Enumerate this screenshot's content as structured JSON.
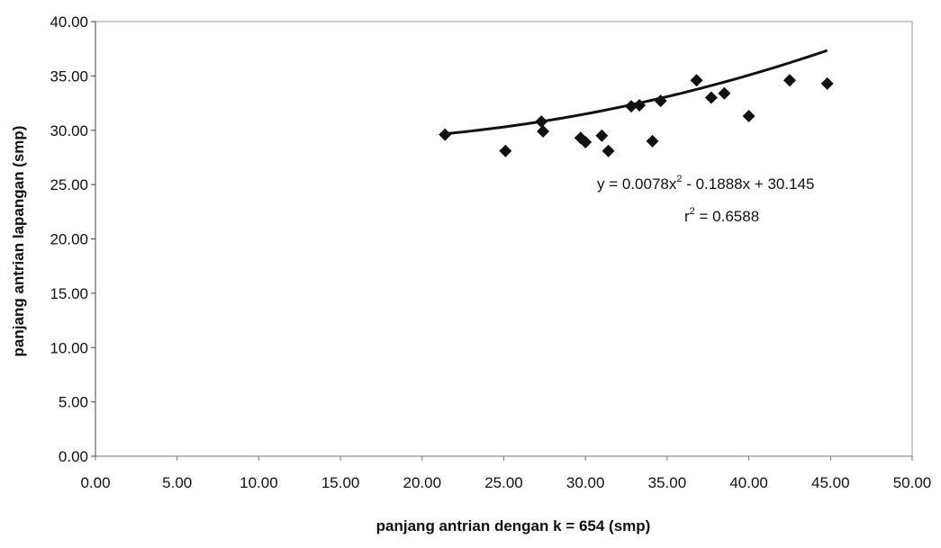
{
  "chart_data": {
    "type": "scatter",
    "xlabel_prefix": "panjang antrian dengan ",
    "xlabel_k": "k = 654",
    "xlabel_suffix": " (smp)",
    "ylabel": "panjang antrian lapangan (smp)",
    "xlim": [
      0,
      50
    ],
    "ylim": [
      0,
      40
    ],
    "x_ticks": [
      "0.00",
      "5.00",
      "10.00",
      "15.00",
      "20.00",
      "25.00",
      "30.00",
      "35.00",
      "40.00",
      "45.00",
      "50.00"
    ],
    "y_ticks": [
      "0.00",
      "5.00",
      "10.00",
      "15.00",
      "20.00",
      "25.00",
      "30.00",
      "35.00",
      "40.00"
    ],
    "grid": false,
    "points": [
      [
        21.4,
        29.6
      ],
      [
        25.1,
        28.1
      ],
      [
        27.3,
        30.8
      ],
      [
        27.4,
        29.9
      ],
      [
        29.7,
        29.3
      ],
      [
        30.0,
        28.9
      ],
      [
        31.0,
        29.5
      ],
      [
        31.4,
        28.1
      ],
      [
        32.8,
        32.2
      ],
      [
        33.3,
        32.3
      ],
      [
        34.1,
        29.0
      ],
      [
        34.6,
        32.7
      ],
      [
        36.8,
        34.6
      ],
      [
        37.7,
        33.0
      ],
      [
        38.5,
        33.4
      ],
      [
        40.0,
        31.3
      ],
      [
        42.5,
        34.6
      ],
      [
        44.8,
        34.3
      ]
    ],
    "trendline": {
      "type": "polynomial",
      "coefficients": {
        "a": 0.0078,
        "b": -0.1888,
        "c": 30.145
      },
      "x_range": [
        21.4,
        44.8
      ],
      "equation_main": "y = 0.0078x",
      "equation_sup": "2",
      "equation_rest": " - 0.1888x + 30.145",
      "r2_main": "r",
      "r2_sup": "2",
      "r2_rest": " = 0.6588"
    },
    "colors": {
      "marker": "#111111",
      "line": "#111111",
      "border": "#999999"
    }
  }
}
